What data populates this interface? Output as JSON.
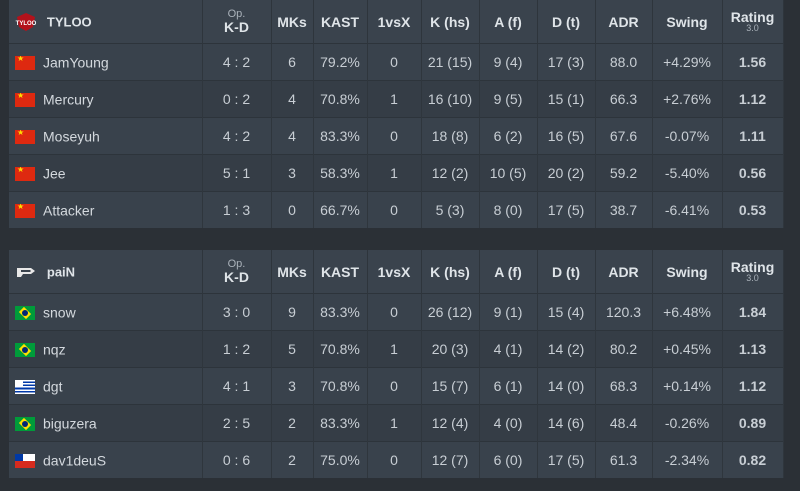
{
  "columns": {
    "op": "Op.",
    "kd": "K-D",
    "mks": "MKs",
    "kast": "KAST",
    "vsx": "1vsX",
    "khs": "K (hs)",
    "af": "A (f)",
    "dt": "D (t)",
    "adr": "ADR",
    "swing": "Swing",
    "rating": "Rating",
    "rating_version": "3.0"
  },
  "colors": {
    "positive": "#5cc462",
    "negative": "#e0483f",
    "rating_good": "#3dd13f",
    "rating_bad": "#ee3a3a"
  },
  "teams": [
    {
      "name": "TYLOO",
      "logo_icon": "tyloo-logo-icon",
      "players": [
        {
          "flag": "cn",
          "name": "JamYoung",
          "kd": "4 : 2",
          "mks": "6",
          "kast": "79.2%",
          "vsx": "0",
          "khs": "21 (15)",
          "af": "9 (4)",
          "dt": "17 (3)",
          "adr": "88.0",
          "swing": "+4.29%",
          "rating": "1.56"
        },
        {
          "flag": "cn",
          "name": "Mercury",
          "kd": "0 : 2",
          "mks": "4",
          "kast": "70.8%",
          "vsx": "1",
          "khs": "16 (10)",
          "af": "9 (5)",
          "dt": "15 (1)",
          "adr": "66.3",
          "swing": "+2.76%",
          "rating": "1.12"
        },
        {
          "flag": "cn",
          "name": "Moseyuh",
          "kd": "4 : 2",
          "mks": "4",
          "kast": "83.3%",
          "vsx": "0",
          "khs": "18 (8)",
          "af": "6 (2)",
          "dt": "16 (5)",
          "adr": "67.6",
          "swing": "-0.07%",
          "rating": "1.11"
        },
        {
          "flag": "cn",
          "name": "Jee",
          "kd": "5 : 1",
          "mks": "3",
          "kast": "58.3%",
          "vsx": "1",
          "khs": "12 (2)",
          "af": "10 (5)",
          "dt": "20 (2)",
          "adr": "59.2",
          "swing": "-5.40%",
          "rating": "0.56"
        },
        {
          "flag": "cn",
          "name": "Attacker",
          "kd": "1 : 3",
          "mks": "0",
          "kast": "66.7%",
          "vsx": "0",
          "khs": "5 (3)",
          "af": "8 (0)",
          "dt": "17 (5)",
          "adr": "38.7",
          "swing": "-6.41%",
          "rating": "0.53"
        }
      ]
    },
    {
      "name": "paiN",
      "logo_icon": "pain-logo-icon",
      "players": [
        {
          "flag": "br",
          "name": "snow",
          "kd": "3 : 0",
          "mks": "9",
          "kast": "83.3%",
          "vsx": "0",
          "khs": "26 (12)",
          "af": "9 (1)",
          "dt": "15 (4)",
          "adr": "120.3",
          "swing": "+6.48%",
          "rating": "1.84"
        },
        {
          "flag": "br",
          "name": "nqz",
          "kd": "1 : 2",
          "mks": "5",
          "kast": "70.8%",
          "vsx": "1",
          "khs": "20 (3)",
          "af": "4 (1)",
          "dt": "14 (2)",
          "adr": "80.2",
          "swing": "+0.45%",
          "rating": "1.13"
        },
        {
          "flag": "uy",
          "name": "dgt",
          "kd": "4 : 1",
          "mks": "3",
          "kast": "70.8%",
          "vsx": "0",
          "khs": "15 (7)",
          "af": "6 (1)",
          "dt": "14 (0)",
          "adr": "68.3",
          "swing": "+0.14%",
          "rating": "1.12"
        },
        {
          "flag": "br",
          "name": "biguzera",
          "kd": "2 : 5",
          "mks": "2",
          "kast": "83.3%",
          "vsx": "1",
          "khs": "12 (4)",
          "af": "4 (0)",
          "dt": "14 (6)",
          "adr": "48.4",
          "swing": "-0.26%",
          "rating": "0.89"
        },
        {
          "flag": "cl",
          "name": "dav1deuS",
          "kd": "0 : 6",
          "mks": "2",
          "kast": "75.0%",
          "vsx": "0",
          "khs": "12 (7)",
          "af": "6 (0)",
          "dt": "17 (5)",
          "adr": "61.3",
          "swing": "-2.34%",
          "rating": "0.82"
        }
      ]
    }
  ]
}
